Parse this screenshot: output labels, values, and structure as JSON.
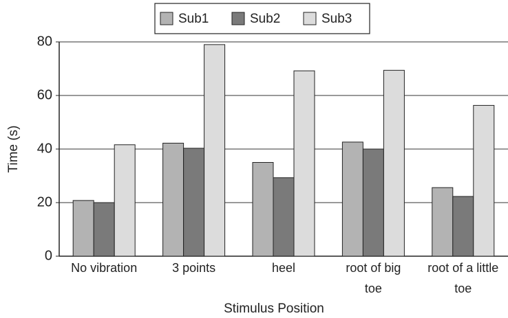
{
  "chart_data": {
    "type": "bar",
    "x_label": "Stimulus Position",
    "y_label": "Time (s)",
    "categories": [
      "No vibration",
      "3 points",
      "heel",
      "root of big toe",
      "root of a little toe"
    ],
    "series": [
      {
        "name": "Sub1",
        "color": "#b3b3b3",
        "values": [
          20.8,
          42.2,
          35,
          42.6,
          25.6
        ]
      },
      {
        "name": "Sub2",
        "color": "#7a7a7a",
        "values": [
          20,
          40.3,
          29.3,
          40,
          22.3
        ]
      },
      {
        "name": "Sub3",
        "color": "#dcdcdc",
        "values": [
          41.6,
          79,
          69.2,
          69.4,
          56.3
        ]
      }
    ],
    "ylim": [
      0,
      80
    ],
    "yticks": [
      0,
      20,
      40,
      60,
      80
    ],
    "grid": true,
    "legend": "top"
  }
}
